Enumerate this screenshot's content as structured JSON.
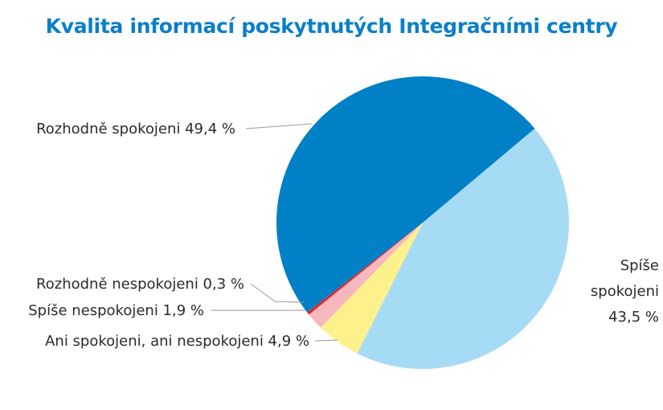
{
  "chart_data": {
    "type": "pie",
    "title": "Kvalita informací poskytnutých Integračními centry",
    "unit": "%",
    "slices": [
      {
        "name": "Rozhodně spokojeni",
        "value": 49.4,
        "label": "Rozhodně spokojeni 49,4 %",
        "color": "#0080c6"
      },
      {
        "name": "Spíše spokojeni",
        "value": 43.5,
        "label_lines": [
          "Spíše",
          "spokojeni",
          "43,5 %"
        ],
        "color": "#a6dbf6"
      },
      {
        "name": "Ani spokojeni, ani nespokojeni",
        "value": 4.9,
        "label": "Ani spokojeni, ani nespokojeni 4,9 %",
        "color": "#fdf18c"
      },
      {
        "name": "Spíše nespokojeni",
        "value": 1.9,
        "label": "Spíše nespokojeni 1,9 %",
        "color": "#f6b7bd"
      },
      {
        "name": "Rozhodně nespokojeni",
        "value": 0.3,
        "label": "Rozhodně nespokojeni 0,3 %",
        "color": "#e3242b"
      }
    ],
    "legend": "none"
  }
}
